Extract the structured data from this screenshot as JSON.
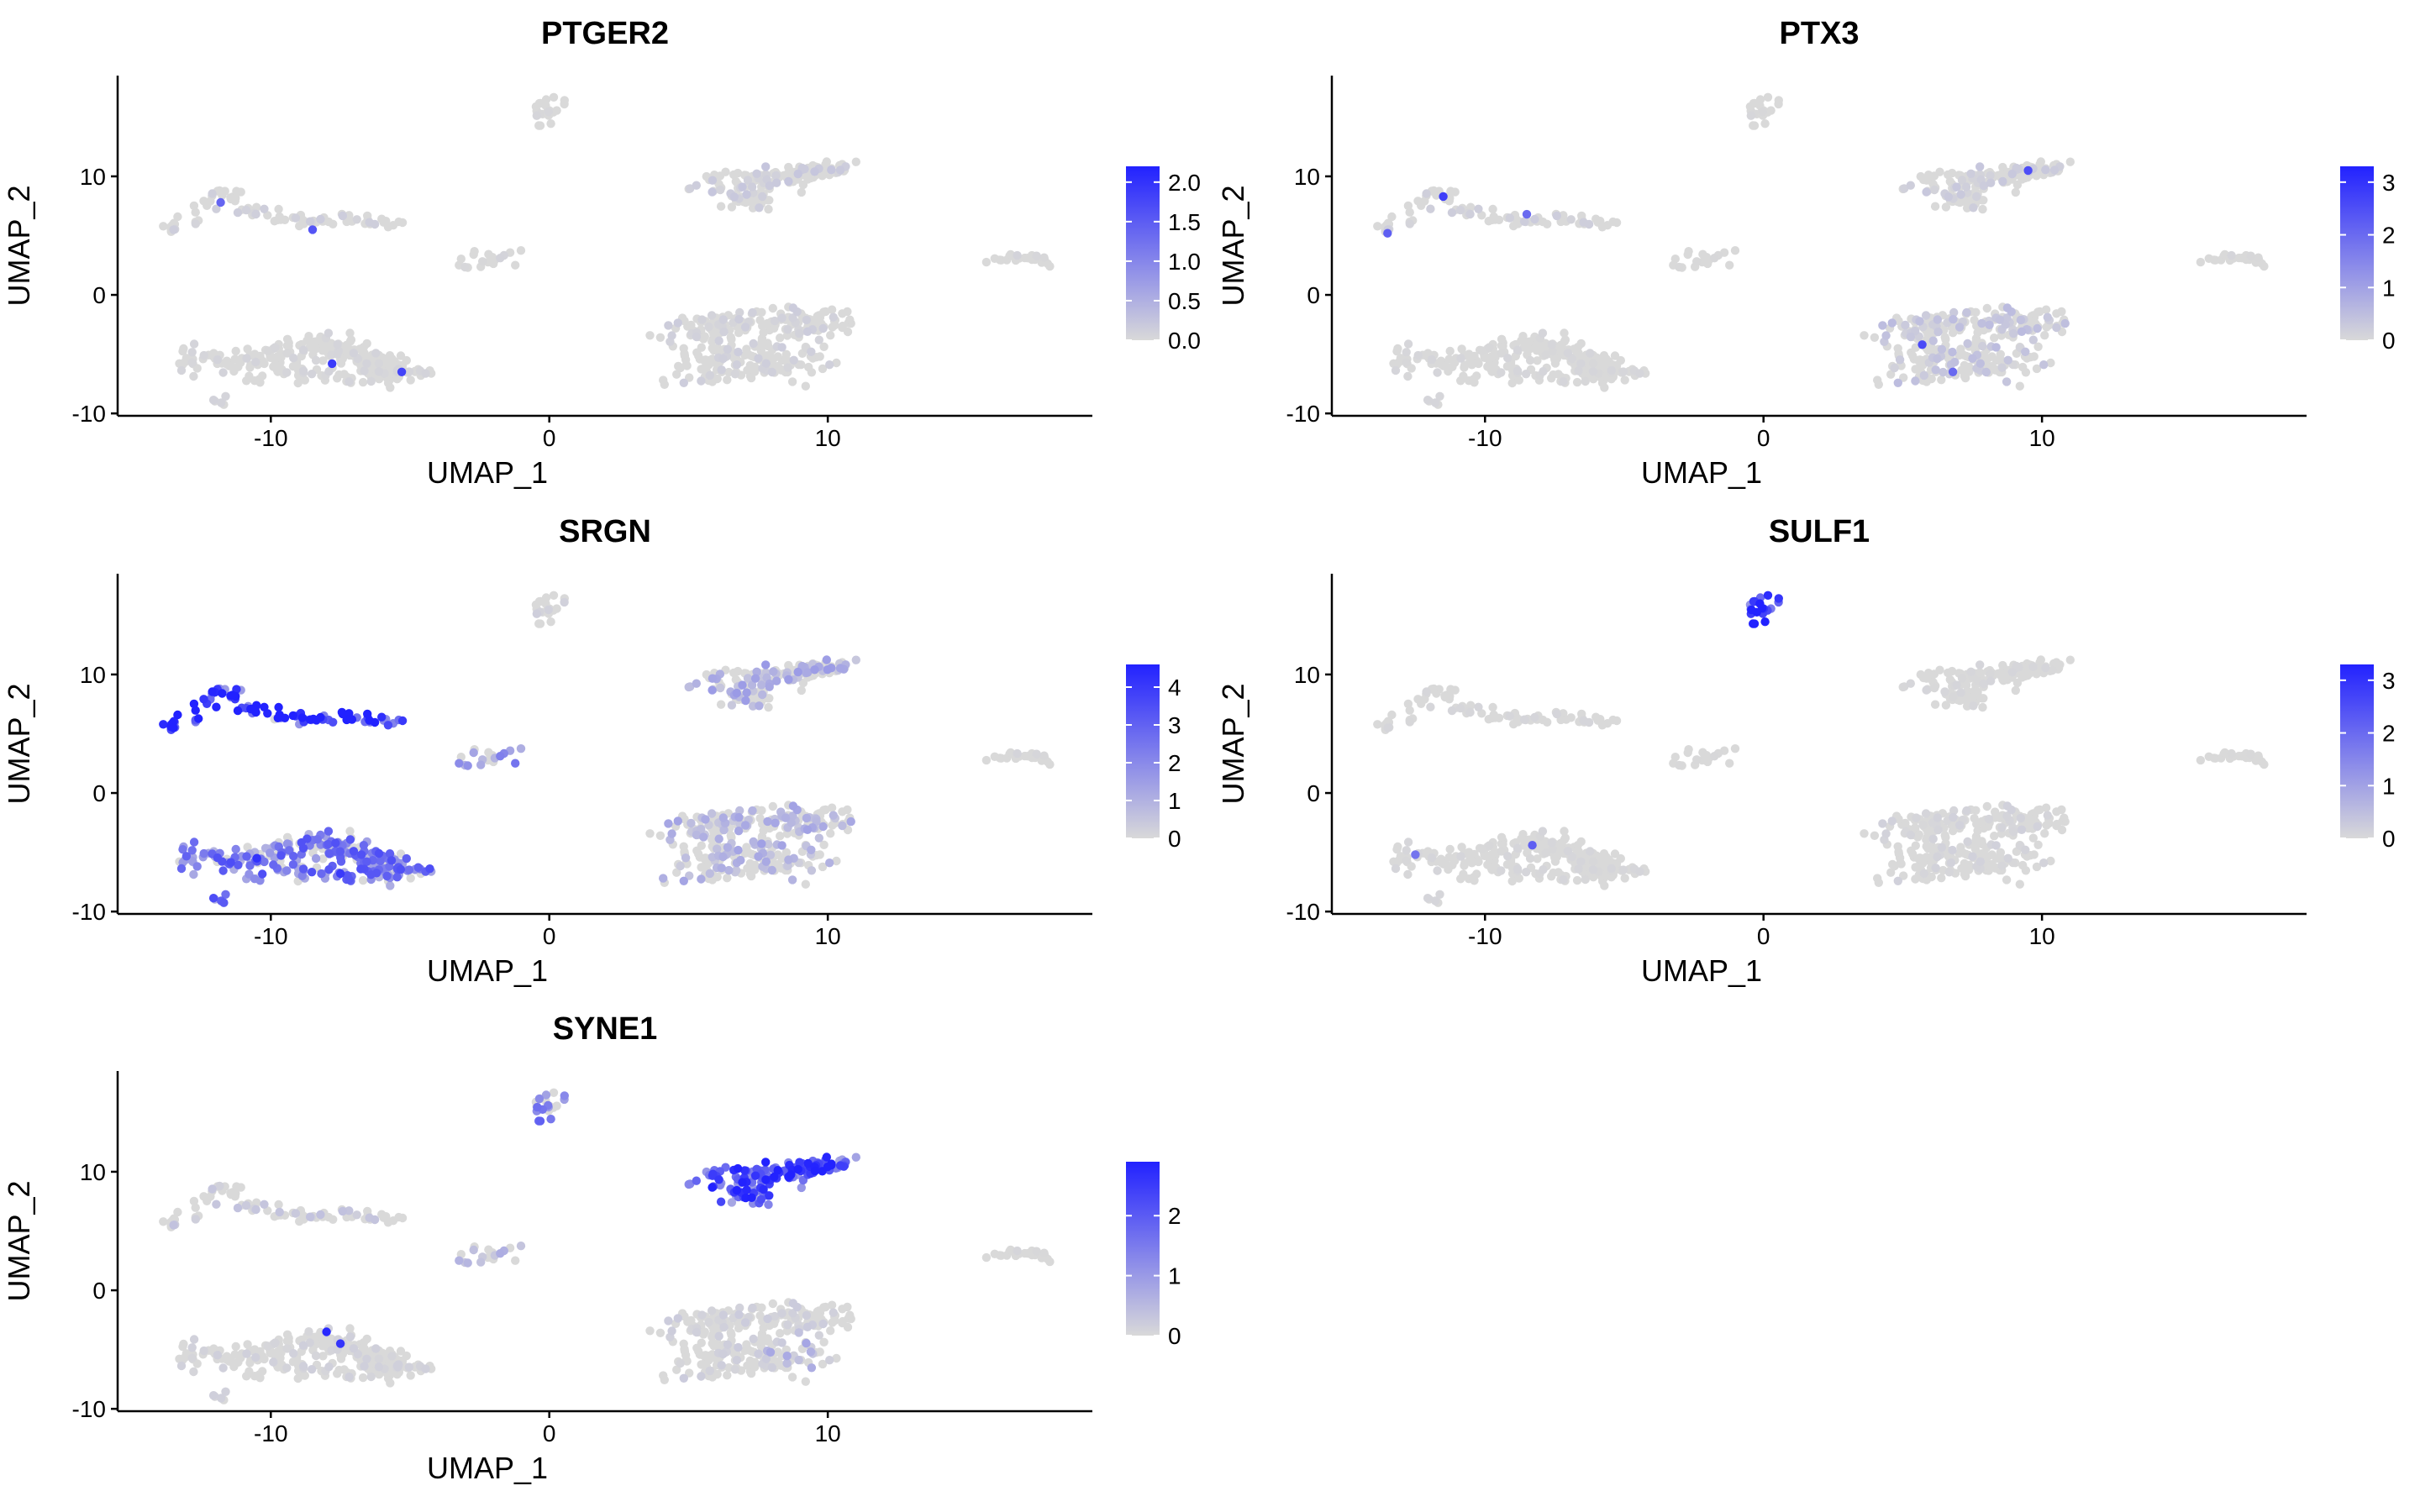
{
  "chart_data": [
    {
      "type": "scatter",
      "title": "PTGER2",
      "xlabel": "UMAP_1",
      "ylabel": "UMAP_2",
      "xlim": [
        -15.5,
        19.5
      ],
      "ylim": [
        -10.2,
        18.5
      ],
      "xticks": [
        -10,
        0,
        10
      ],
      "yticks": [
        -10,
        0,
        10
      ],
      "color_scale": {
        "low": "#d9d9d9",
        "high": "#2222ff",
        "max": 2.2,
        "ticks": [
          "0.0",
          "0.5",
          "1.0",
          "1.5",
          "2.0"
        ],
        "tick_values": [
          0,
          0.5,
          1.0,
          1.5,
          2.0
        ]
      },
      "expression": {
        "A": 0.1,
        "B": 0.05,
        "C": 0.05,
        "D": 0.15,
        "E": 0.05,
        "F": 0.05,
        "G": 0.1,
        "H": 0.02
      },
      "highlights": [
        {
          "x": -8.5,
          "y": 5.5,
          "v": 1.6
        },
        {
          "x": -5.3,
          "y": -6.5,
          "v": 1.8
        },
        {
          "x": -11.8,
          "y": 7.8,
          "v": 1.4
        },
        {
          "x": -7.8,
          "y": -5.8,
          "v": 1.9
        }
      ]
    },
    {
      "type": "scatter",
      "title": "PTX3",
      "xlabel": "UMAP_1",
      "ylabel": "UMAP_2",
      "xlim": [
        -15.5,
        19.5
      ],
      "ylim": [
        -10.2,
        18.5
      ],
      "xticks": [
        -10,
        0,
        10
      ],
      "yticks": [
        -10,
        0,
        10
      ],
      "color_scale": {
        "low": "#d9d9d9",
        "high": "#2222ff",
        "max": 3.3,
        "ticks": [
          "0",
          "1",
          "2",
          "3"
        ],
        "tick_values": [
          0,
          1,
          2,
          3
        ]
      },
      "expression": {
        "A": 0.15,
        "B": 0.05,
        "C": 0.05,
        "D": 0.2,
        "E": 0.02,
        "F": 0.05,
        "G": 0.35,
        "H": 0.1
      },
      "highlights": [
        {
          "x": -11.5,
          "y": 8.3,
          "v": 2.8
        },
        {
          "x": 9.5,
          "y": 10.5,
          "v": 2.5
        },
        {
          "x": 5.7,
          "y": -4.2,
          "v": 2.6
        },
        {
          "x": -8.5,
          "y": 6.8,
          "v": 2.0
        },
        {
          "x": -13.5,
          "y": 5.2,
          "v": 2.2
        },
        {
          "x": 6.8,
          "y": -6.5,
          "v": 2.0
        }
      ]
    },
    {
      "type": "scatter",
      "title": "SRGN",
      "xlabel": "UMAP_1",
      "ylabel": "UMAP_2",
      "xlim": [
        -15.5,
        19.5
      ],
      "ylim": [
        -10.2,
        18.5
      ],
      "xticks": [
        -10,
        0,
        10
      ],
      "yticks": [
        -10,
        0,
        10
      ],
      "color_scale": {
        "low": "#d9d9d9",
        "high": "#2222ff",
        "max": 4.6,
        "ticks": [
          "0",
          "1",
          "2",
          "3",
          "4"
        ],
        "tick_values": [
          0,
          1,
          2,
          3,
          4
        ]
      },
      "expression": {
        "A": 3.8,
        "B": 2.2,
        "C": 0.3,
        "D": 1.0,
        "E": 1.6,
        "F": 0.1,
        "G": 0.9,
        "H": 0.5
      },
      "highlights": [
        {
          "x": -12,
          "y": 8.5,
          "v": 4.4
        },
        {
          "x": -10.5,
          "y": -5.5,
          "v": 4.2
        },
        {
          "x": -7.5,
          "y": -6.8,
          "v": 4.0
        }
      ]
    },
    {
      "type": "scatter",
      "title": "SULF1",
      "xlabel": "UMAP_1",
      "ylabel": "UMAP_2",
      "xlim": [
        -15.5,
        19.5
      ],
      "ylim": [
        -10.2,
        18.5
      ],
      "xticks": [
        -10,
        0,
        10
      ],
      "yticks": [
        -10,
        0,
        10
      ],
      "color_scale": {
        "low": "#d9d9d9",
        "high": "#2222ff",
        "max": 3.3,
        "ticks": [
          "0",
          "1",
          "2",
          "3"
        ],
        "tick_values": [
          0,
          1,
          2,
          3
        ]
      },
      "expression": {
        "A": 0.05,
        "B": 0.05,
        "C": 3.0,
        "D": 0.05,
        "E": 0.02,
        "F": 0.02,
        "G": 0.1,
        "H": 0.05
      },
      "highlights": [
        {
          "x": -8.3,
          "y": -4.4,
          "v": 2.2
        },
        {
          "x": -12.5,
          "y": -5.2,
          "v": 1.8
        }
      ]
    },
    {
      "type": "scatter",
      "title": "SYNE1",
      "xlabel": "UMAP_1",
      "ylabel": "UMAP_2",
      "xlim": [
        -15.5,
        19.5
      ],
      "ylim": [
        -10.2,
        18.5
      ],
      "xticks": [
        -10,
        0,
        10
      ],
      "yticks": [
        -10,
        0,
        10
      ],
      "color_scale": {
        "low": "#d9d9d9",
        "high": "#2222ff",
        "max": 2.9,
        "ticks": [
          "0",
          "1",
          "2"
        ],
        "tick_values": [
          0,
          1,
          2
        ]
      },
      "expression": {
        "A": 0.25,
        "B": 0.1,
        "C": 1.3,
        "D": 1.9,
        "E": 0.5,
        "F": 0.05,
        "G": 0.15,
        "H": 0.7
      },
      "highlights": [
        {
          "x": -8,
          "y": -3.5,
          "v": 2.8
        },
        {
          "x": -7.5,
          "y": -4.5,
          "v": 2.6
        },
        {
          "x": 7,
          "y": 9.5,
          "v": 2.5
        }
      ]
    }
  ]
}
